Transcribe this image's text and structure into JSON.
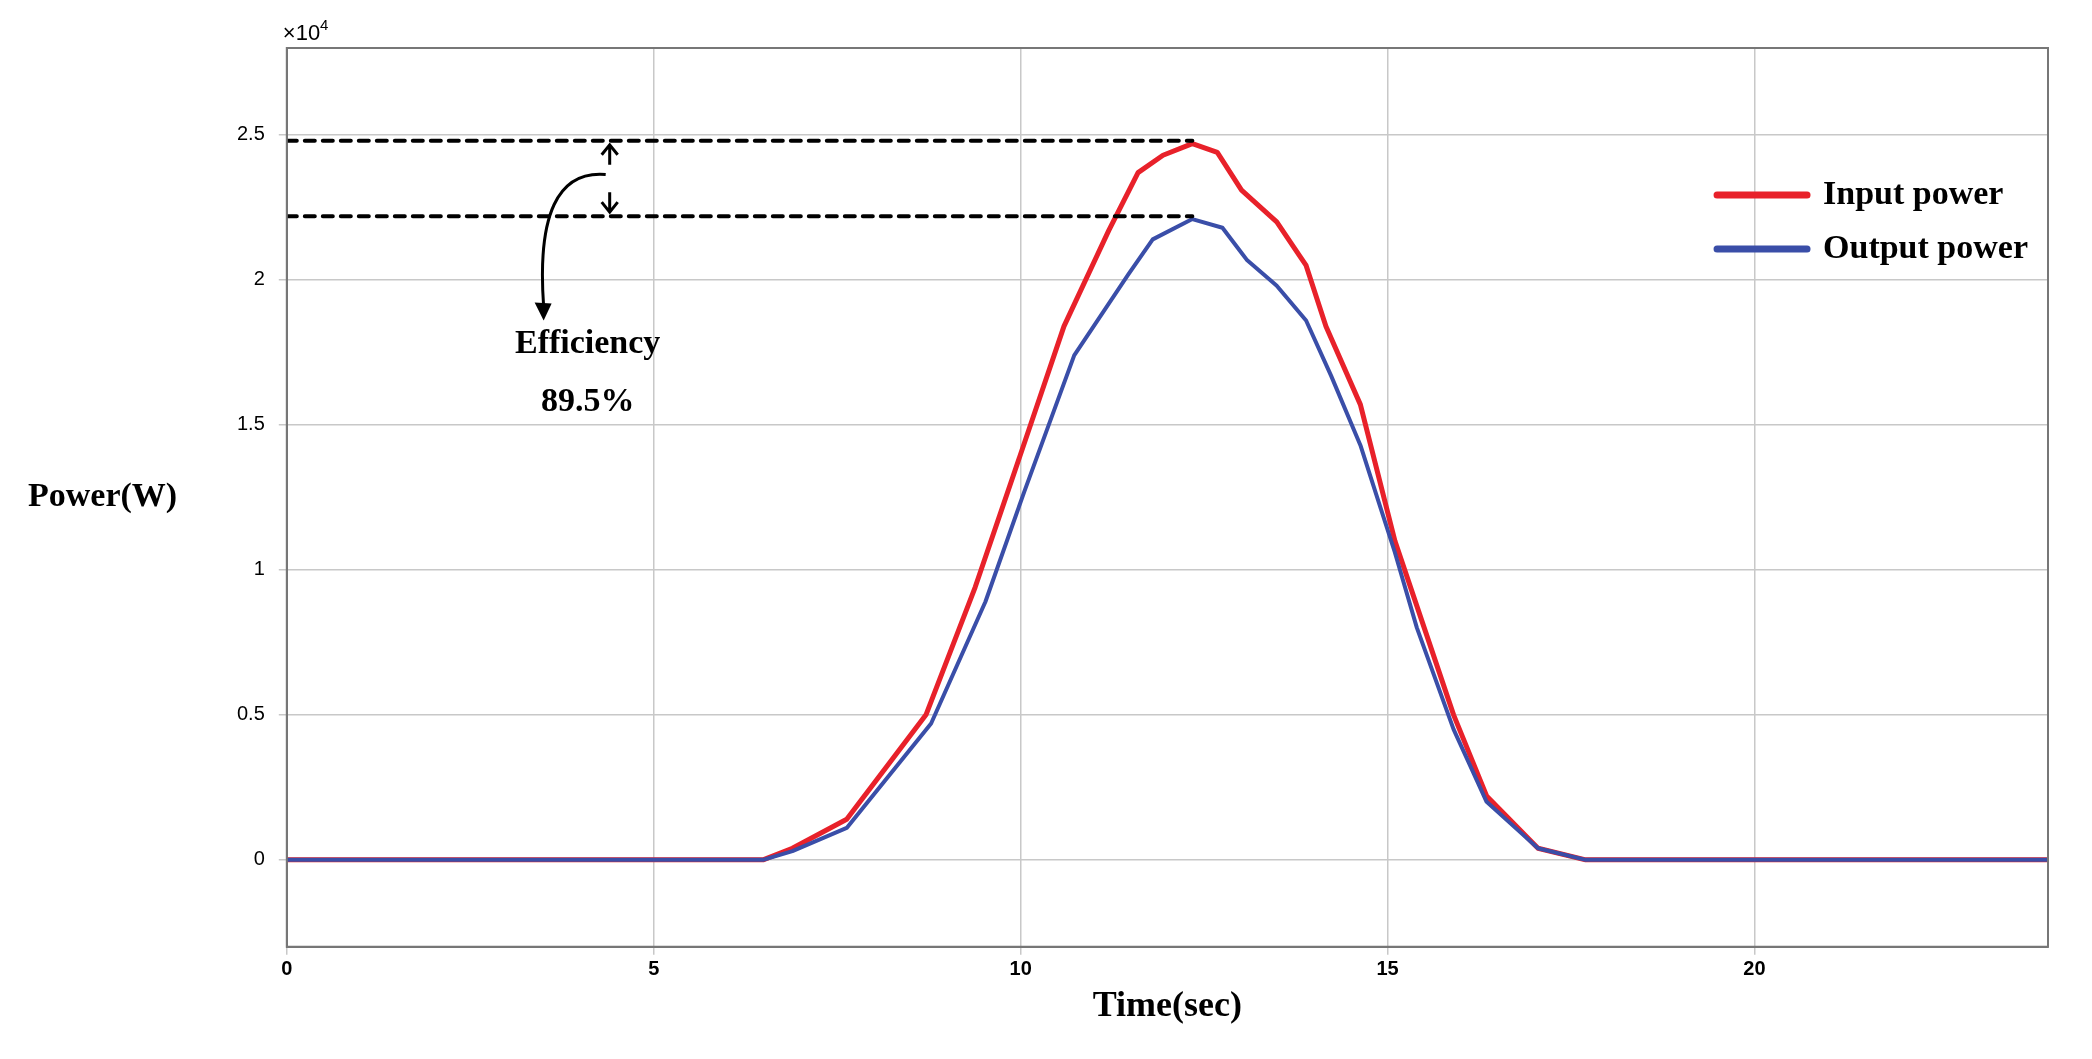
{
  "chart_data": {
    "type": "line",
    "xlabel": "Time(sec)",
    "ylabel": "Power(W)",
    "xlim": [
      0,
      24
    ],
    "xticks": [
      0,
      5,
      10,
      15,
      20
    ],
    "ylim": [
      -0.3,
      2.8
    ],
    "yticks": [
      0,
      0.5,
      1,
      1.5,
      2,
      2.5
    ],
    "grid": true,
    "legend": "top right",
    "marker": "none",
    "line_style": "solid",
    "annotations": [
      "×10$^{4}$",
      "Efficiency",
      "89.5%"
    ],
    "series": [
      {
        "name": "Input power",
        "color": "#e8212a",
        "x": [
          0,
          6.49,
          6.89,
          7.63,
          8.71,
          9.38,
          9.92,
          10.59,
          11.2,
          11.6,
          11.94,
          12.34,
          12.68,
          13.01,
          13.49,
          13.89,
          14.16,
          14.63,
          15.1,
          15.5,
          15.9,
          16.35,
          17.05,
          17.7,
          24
        ],
        "values": [
          0,
          0,
          0.04,
          0.14,
          0.5,
          0.94,
          1.34,
          1.84,
          2.17,
          2.37,
          2.43,
          2.47,
          2.44,
          2.31,
          2.2,
          2.05,
          1.84,
          1.57,
          1.1,
          0.8,
          0.5,
          0.22,
          0.04,
          0,
          0
        ]
      },
      {
        "name": "Output power",
        "color": "#3a4ea8",
        "x": [
          0,
          6.49,
          6.89,
          7.63,
          8.78,
          9.52,
          10.05,
          10.73,
          11.47,
          11.8,
          12.34,
          12.75,
          13.08,
          13.49,
          13.89,
          14.23,
          14.63,
          15.1,
          15.4,
          15.9,
          16.35,
          17.05,
          17.7,
          24
        ],
        "values": [
          0,
          0,
          0.03,
          0.11,
          0.47,
          0.89,
          1.27,
          1.74,
          2.02,
          2.14,
          2.21,
          2.18,
          2.07,
          1.98,
          1.86,
          1.67,
          1.43,
          1.06,
          0.8,
          0.45,
          0.2,
          0.04,
          0,
          0
        ]
      },
      {
        "line_style": "dashed",
        "color": "#000000",
        "x": [
          0,
          12.34
        ],
        "values": [
          2.48,
          2.48
        ]
      },
      {
        "line_style": "dashed",
        "color": "#000000",
        "x": [
          0,
          12.34
        ],
        "values": [
          2.22,
          2.22
        ]
      }
    ]
  }
}
